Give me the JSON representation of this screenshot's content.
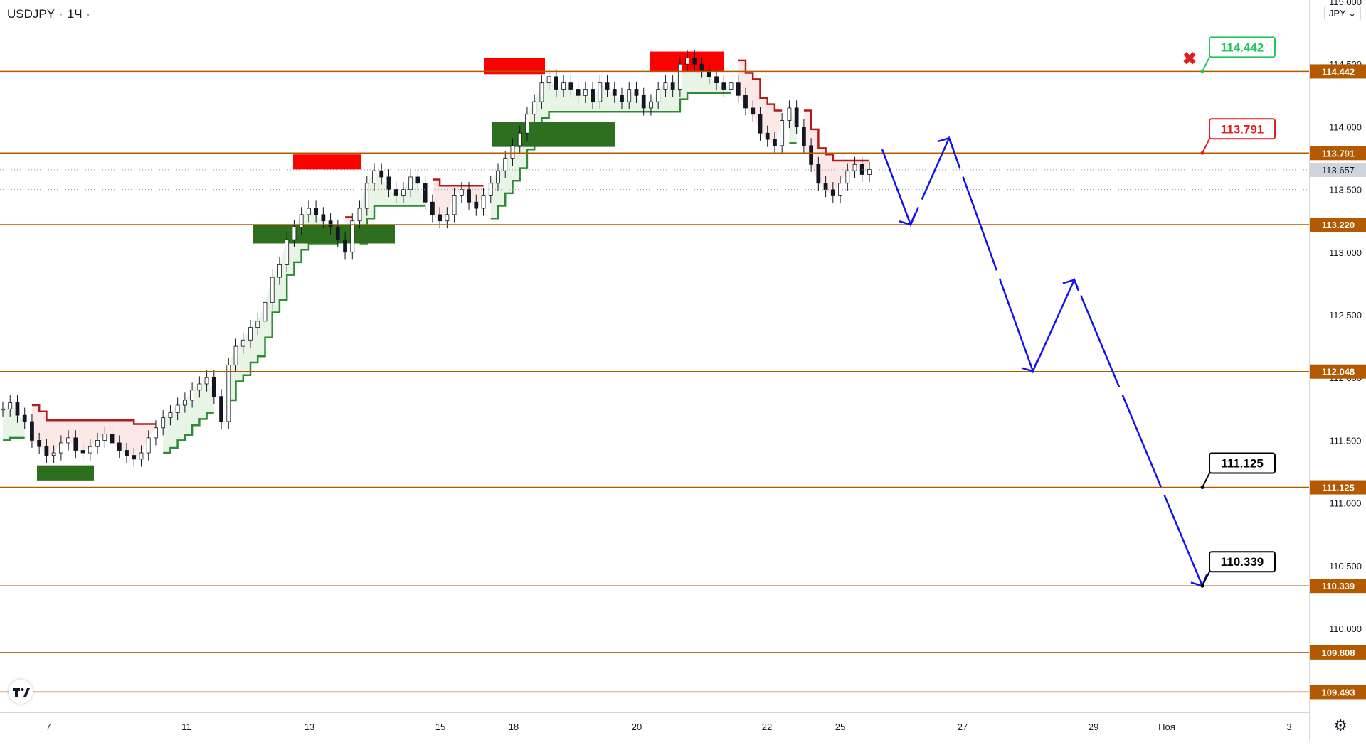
{
  "header": {
    "symbol": "USDJPY",
    "interval": "1Ч",
    "currency": "JPY"
  },
  "colors": {
    "level_line": "#b35a00",
    "level_label_bg": "#b35a00",
    "projection": "#1212f0",
    "bull_zone": "#2e6e1f",
    "bear_zone": "#ff0000",
    "stop_up": "#2e8b35",
    "stop_down": "#b31b1b",
    "fill_up": "#e8f4e6",
    "fill_down": "#fde8e8",
    "candle": "#131722",
    "target_green": "#22c55e",
    "target_red": "#e11d1d",
    "target_black": "#000000"
  },
  "price_scale": {
    "ticks": [
      "115.000",
      "114.500",
      "114.000",
      "113.500",
      "113.000",
      "112.500",
      "112.000",
      "111.500",
      "111.000",
      "110.500",
      "110.000"
    ],
    "tick_values": [
      115.0,
      114.5,
      114.0,
      113.5,
      113.0,
      112.5,
      112.0,
      111.5,
      111.0,
      110.5,
      110.0
    ],
    "last_price": "113.657"
  },
  "time_scale": {
    "labels": [
      "7",
      "11",
      "13",
      "15",
      "18",
      "20",
      "22",
      "25",
      "27",
      "29",
      "Ноя",
      "3"
    ]
  },
  "chart_data": {
    "type": "candlestick",
    "symbol": "USDJPY",
    "interval": "1Ч",
    "ylim": [
      109.3,
      115.5
    ],
    "x_labels": [
      "7",
      "11",
      "13",
      "15",
      "18",
      "20",
      "22",
      "25",
      "27",
      "29",
      "Ноя",
      "3"
    ],
    "levels": [
      {
        "value": 114.442,
        "label": "114.442"
      },
      {
        "value": 113.791,
        "label": "113.791"
      },
      {
        "value": 113.22,
        "label": "113.220"
      },
      {
        "value": 112.048,
        "label": "112.048"
      },
      {
        "value": 111.125,
        "label": "111.125"
      },
      {
        "value": 110.339,
        "label": "110.339"
      },
      {
        "value": 109.808,
        "label": "109.808"
      },
      {
        "value": 109.493,
        "label": "109.493"
      }
    ],
    "targets": [
      {
        "label": "114.442",
        "value": 114.442,
        "style": "green"
      },
      {
        "label": "113.791",
        "value": 113.791,
        "style": "red"
      },
      {
        "label": "111.125",
        "value": 111.125,
        "style": "black"
      },
      {
        "label": "110.339",
        "value": 110.339,
        "style": "black"
      }
    ],
    "projection_path": [
      113.82,
      113.22,
      113.91,
      112.05,
      112.78,
      110.339
    ],
    "close_series": [
      111.75,
      111.8,
      111.7,
      111.65,
      111.5,
      111.45,
      111.38,
      111.4,
      111.48,
      111.52,
      111.42,
      111.4,
      111.45,
      111.5,
      111.55,
      111.48,
      111.42,
      111.38,
      111.35,
      111.4,
      111.52,
      111.6,
      111.68,
      111.72,
      111.78,
      111.82,
      111.9,
      111.95,
      112.0,
      111.85,
      111.65,
      112.1,
      112.25,
      112.3,
      112.4,
      112.45,
      112.6,
      112.8,
      112.9,
      113.1,
      113.2,
      113.3,
      113.35,
      113.3,
      113.25,
      113.2,
      113.1,
      113.0,
      113.25,
      113.35,
      113.55,
      113.65,
      113.6,
      113.5,
      113.45,
      113.5,
      113.6,
      113.55,
      113.4,
      113.3,
      113.25,
      113.3,
      113.45,
      113.5,
      113.4,
      113.35,
      113.45,
      113.55,
      113.65,
      113.75,
      113.85,
      113.95,
      114.1,
      114.2,
      114.35,
      114.4,
      114.3,
      114.35,
      114.3,
      114.25,
      114.3,
      114.2,
      114.35,
      114.3,
      114.25,
      114.2,
      114.3,
      114.25,
      114.15,
      114.2,
      114.3,
      114.35,
      114.3,
      114.5,
      114.55,
      114.5,
      114.45,
      114.4,
      114.35,
      114.3,
      114.35,
      114.25,
      114.15,
      114.1,
      113.95,
      113.9,
      113.85,
      114.05,
      114.15,
      114.0,
      113.85,
      113.7,
      113.55,
      113.5,
      113.45,
      113.55,
      113.65,
      113.7,
      113.62,
      113.66
    ]
  }
}
